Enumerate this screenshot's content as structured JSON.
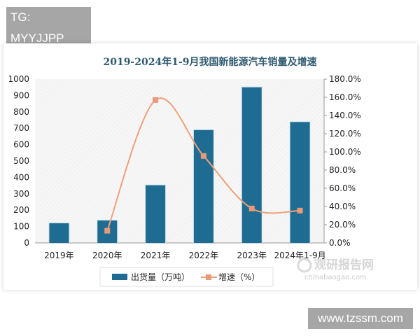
{
  "overlays": {
    "top_tag": "TG: MYYJJPP",
    "bottom_tag": "www.tzssm.com"
  },
  "watermark": {
    "name": "观研报告网",
    "url": "chinabaogao.com"
  },
  "colors": {
    "bar": "#1f6c92",
    "line": "#f0a07a",
    "marker": "#e9997a",
    "title": "#2f5b72"
  },
  "chart_data": {
    "type": "bar+line",
    "title": "2019-2024年1-9月我国新能源汽车销量及增速",
    "categories": [
      "2019年",
      "2020年",
      "2021年",
      "2022年",
      "2023年",
      "2024年1-9月"
    ],
    "series": [
      {
        "name": "出货量（万吨）",
        "type": "bar",
        "axis": "left",
        "values": [
          120,
          137,
          352,
          689,
          950,
          738
        ]
      },
      {
        "name": "增速（%）",
        "type": "line",
        "axis": "right",
        "smooth": true,
        "values": [
          null,
          13.4,
          157.0,
          95.5,
          37.8,
          35.5
        ]
      }
    ],
    "y_left": {
      "range": [
        0,
        1000
      ],
      "ticks": [
        "0",
        "100",
        "200",
        "300",
        "400",
        "500",
        "600",
        "700",
        "800",
        "900",
        "1000"
      ]
    },
    "y_right": {
      "range": [
        0,
        180
      ],
      "ticks": [
        "0.0%",
        "20.0%",
        "40.0%",
        "60.0%",
        "80.0%",
        "100.0%",
        "120.0%",
        "140.0%",
        "160.0%",
        "180.0%"
      ]
    },
    "legend": "bottom",
    "grid": false
  }
}
